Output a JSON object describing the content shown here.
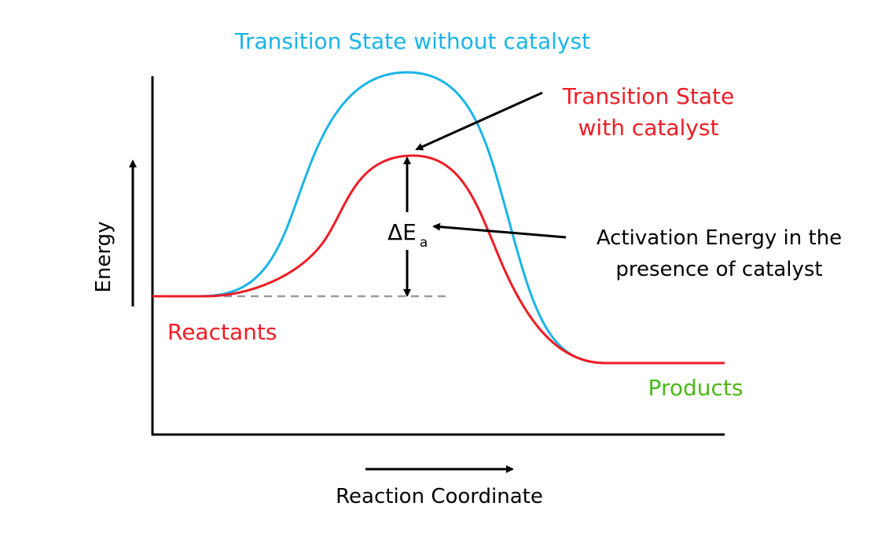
{
  "colors": {
    "uncatalyzed": "#1ab4e8",
    "catalyzed": "#ee1c25",
    "products": "#4cb81c",
    "ink": "#000000",
    "baseline": "#9a9a9a"
  },
  "labels": {
    "ts_uncatalyzed": "Transition State without catalyst",
    "ts_catalyzed_line1": "Transition State",
    "ts_catalyzed_line2": "with catalyst",
    "activation_line1": "Activation Energy in the",
    "activation_line2": "presence of catalyst",
    "delta_e": "ΔE",
    "delta_e_sub": "a",
    "reactants": "Reactants",
    "products": "Products",
    "y_axis": "Energy",
    "x_axis": "Reaction Coordinate"
  }
}
